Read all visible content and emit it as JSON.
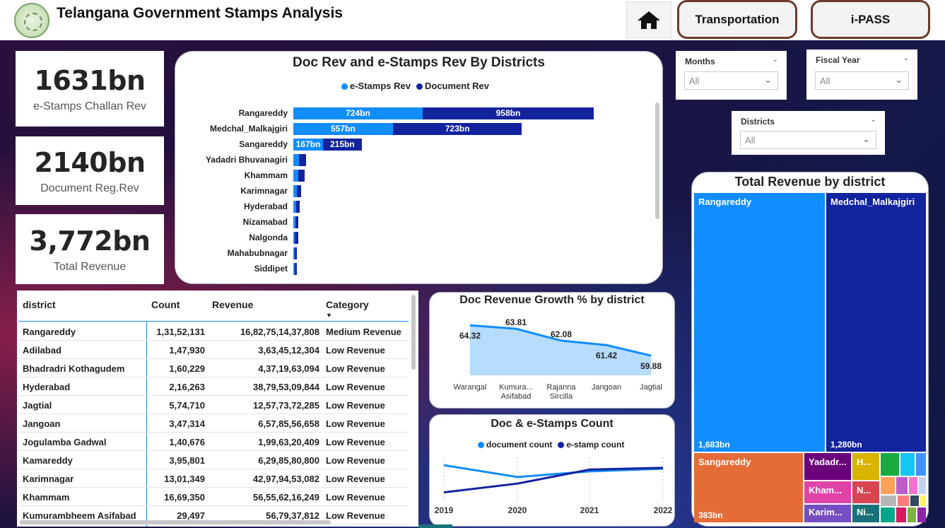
{
  "header": {
    "title": "Telangana Government Stamps Analysis",
    "nav": [
      {
        "label": "Transportation"
      },
      {
        "label": "i-PASS"
      }
    ]
  },
  "kpis": [
    {
      "value": "1631bn",
      "label": "e-Stamps Challan Rev"
    },
    {
      "value": "2140bn",
      "label": "Document Reg.Rev"
    },
    {
      "value": "3,772bn",
      "label": "Total Revenue"
    }
  ],
  "slicers": {
    "months": {
      "label": "Months",
      "value": "All"
    },
    "fiscal_year": {
      "label": "Fiscal Year",
      "value": "All"
    },
    "districts": {
      "label": "Districts",
      "value": "All"
    }
  },
  "colors": {
    "estamp": "#118dff",
    "document": "#12239e",
    "sangareddy": "#e66c37",
    "yadadri": "#6b007b",
    "khammam": "#e044a7",
    "karimnagar": "#744ec2",
    "hyderabad": "#d9b300",
    "nizamabad": "#197278"
  },
  "table": {
    "headers": [
      "district",
      "Count",
      "Revenue",
      "Category"
    ],
    "rows": [
      {
        "district": "Rangareddy",
        "count": "1,31,52,131",
        "revenue": "16,82,75,14,37,808",
        "category": "Medium Revenue"
      },
      {
        "district": "Adilabad",
        "count": "1,47,930",
        "revenue": "3,63,45,12,304",
        "category": "Low Revenue"
      },
      {
        "district": "Bhadradri Kothagudem",
        "count": "1,60,229",
        "revenue": "4,37,19,63,094",
        "category": "Low Revenue"
      },
      {
        "district": "Hyderabad",
        "count": "2,16,263",
        "revenue": "38,79,53,09,844",
        "category": "Low Revenue"
      },
      {
        "district": "Jagtial",
        "count": "5,74,710",
        "revenue": "12,57,73,72,285",
        "category": "Low Revenue"
      },
      {
        "district": "Jangoan",
        "count": "3,47,314",
        "revenue": "6,57,85,56,658",
        "category": "Low Revenue"
      },
      {
        "district": "Jogulamba Gadwal",
        "count": "1,40,676",
        "revenue": "1,99,63,20,409",
        "category": "Low Revenue"
      },
      {
        "district": "Kamareddy",
        "count": "3,95,801",
        "revenue": "6,29,85,80,800",
        "category": "Low Revenue"
      },
      {
        "district": "Karimnagar",
        "count": "13,01,349",
        "revenue": "42,97,94,53,082",
        "category": "Low Revenue"
      },
      {
        "district": "Khammam",
        "count": "16,69,350",
        "revenue": "56,55,62,16,249",
        "category": "Low Revenue"
      },
      {
        "district": "Kumurambheem Asifabad",
        "count": "29,497",
        "revenue": "56,79,37,812",
        "category": "Low Revenue"
      }
    ]
  },
  "treemap": {
    "title": "Total Revenue by district",
    "tiles": [
      {
        "name": "Rangareddy",
        "value": "1,683bn"
      },
      {
        "name": "Medchal_Malkajgiri",
        "value": "1,280bn"
      },
      {
        "name": "Sangareddy",
        "value": "383bn"
      },
      {
        "name": "Yadadr...",
        "value": ""
      },
      {
        "name": "H...",
        "value": ""
      },
      {
        "name": "Kham...",
        "value": ""
      },
      {
        "name": "N...",
        "value": ""
      },
      {
        "name": "Karim...",
        "value": ""
      },
      {
        "name": "Ni...",
        "value": ""
      }
    ]
  },
  "chart_data": [
    {
      "type": "bar",
      "title": "Doc Rev and e-Stamps Rev By Districts",
      "legend": "top-center",
      "categories": [
        "Rangareddy",
        "Medchal_Malkajgiri",
        "Sangareddy",
        "Yadadri Bhuvanagiri",
        "Khammam",
        "Karimnagar",
        "Hyderabad",
        "Nizamabad",
        "Nalgonda",
        "Mahabubnagar",
        "Siddipet"
      ],
      "series": [
        {
          "name": "e-Stamps Rev",
          "values": [
            724,
            557,
            167,
            30,
            28,
            18,
            14,
            10,
            8,
            7,
            6
          ],
          "labels": [
            "724bn",
            "557bn",
            "167bn",
            "",
            "",
            "",
            "",
            "",
            "",
            "",
            ""
          ]
        },
        {
          "name": "Document Rev",
          "values": [
            958,
            723,
            215,
            40,
            35,
            25,
            22,
            18,
            20,
            14,
            13
          ],
          "labels": [
            "958bn",
            "723bn",
            "215bn",
            "",
            "",
            "",
            "",
            "",
            "",
            "",
            ""
          ]
        }
      ]
    },
    {
      "type": "area",
      "title": "Doc Revenue Growth % by district",
      "categories": [
        "Warangal",
        "Kumura... Asifabad",
        "Rajanna Sircilla",
        "Jangoan",
        "Jagtial"
      ],
      "values": [
        64.32,
        63.81,
        62.08,
        61.42,
        59.88
      ],
      "labels": [
        "64.32",
        "63.81",
        "62.08",
        "61.42",
        "59.88"
      ]
    },
    {
      "type": "line",
      "title": "Doc & e-Stamps Count",
      "legend": "top-center",
      "categories": [
        "2019",
        "2020",
        "2021",
        "2022"
      ],
      "series": [
        {
          "name": "document count",
          "values": [
            0.82,
            0.55,
            0.68,
            0.74
          ]
        },
        {
          "name": "e-stamp count",
          "values": [
            0.2,
            0.4,
            0.72,
            0.76
          ]
        }
      ]
    }
  ]
}
